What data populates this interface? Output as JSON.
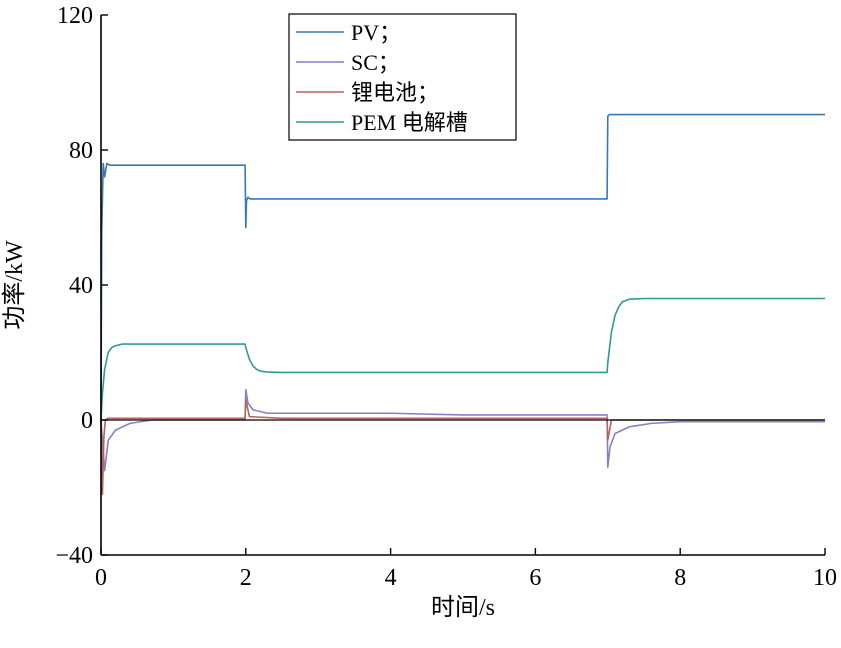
{
  "chart_data": {
    "type": "line",
    "xlabel": "时间/s",
    "ylabel": "功率/kW",
    "xlim": [
      0,
      10
    ],
    "ylim": [
      -40,
      120
    ],
    "x_ticks": [
      0,
      2,
      4,
      6,
      8,
      10
    ],
    "y_ticks": [
      -40,
      0,
      40,
      80,
      120
    ],
    "x_tick_labels": [
      "0",
      "2",
      "4",
      "6",
      "8",
      "10"
    ],
    "y_tick_labels": [
      "−40",
      "0",
      "40",
      "80",
      "120"
    ],
    "grid": false,
    "legend_position": "top-center",
    "series": [
      {
        "name": "PV；",
        "color": "#3a78b4",
        "x": [
          0,
          0.01,
          0.03,
          0.05,
          0.08,
          0.12,
          1.99,
          2.0,
          2.01,
          2.03,
          2.06,
          6.99,
          7.0,
          7.02,
          7.05,
          10.0
        ],
        "y": [
          0,
          55,
          76,
          72,
          76,
          75.5,
          75.5,
          57,
          65,
          66,
          65.5,
          65.5,
          90,
          90.5,
          90.5,
          90.5
        ]
      },
      {
        "name": "SC；",
        "color": "#8383c4",
        "x": [
          0,
          0.05,
          0.1,
          0.2,
          0.4,
          0.7,
          1.0,
          1.5,
          1.99,
          2.0,
          2.03,
          2.1,
          2.3,
          2.6,
          3.0,
          4.0,
          5.0,
          6.0,
          6.99,
          7.0,
          7.03,
          7.1,
          7.3,
          7.6,
          8.0,
          9.0,
          10.0
        ],
        "y": [
          0,
          -15,
          -6,
          -3,
          -1,
          0,
          0,
          0,
          0,
          9,
          5,
          3,
          2,
          2,
          2,
          2,
          1.5,
          1.5,
          1.5,
          -14,
          -8,
          -4,
          -2,
          -1,
          -0.5,
          -0.5,
          -0.5
        ]
      },
      {
        "name": "锂电池；",
        "color": "#b4655a",
        "x": [
          0,
          0.02,
          0.04,
          0.06,
          0.1,
          0.5,
          1.0,
          1.5,
          1.99,
          2.0,
          2.05,
          2.5,
          3.0,
          4.0,
          5.0,
          6.0,
          6.99,
          7.0,
          7.05,
          7.5,
          8.0,
          9.0,
          10.0
        ],
        "y": [
          0,
          -22,
          -5,
          0,
          0.5,
          0.5,
          0.5,
          0.5,
          0.5,
          6,
          1,
          0.5,
          0.5,
          0.5,
          0.5,
          0.5,
          0.5,
          -6,
          0,
          0,
          0,
          0,
          0
        ]
      },
      {
        "name": "PEM 电解槽",
        "color": "#2f9a96",
        "x": [
          0,
          0.02,
          0.05,
          0.1,
          0.15,
          0.2,
          0.3,
          0.5,
          1.0,
          1.99,
          2.0,
          2.05,
          2.1,
          2.15,
          2.2,
          2.3,
          2.5,
          3.0,
          6.99,
          7.0,
          7.05,
          7.1,
          7.15,
          7.2,
          7.3,
          7.5,
          8.0,
          10.0
        ],
        "y": [
          0,
          8,
          15,
          20,
          21.5,
          22,
          22.5,
          22.5,
          22.5,
          22.5,
          21.5,
          18,
          16,
          15,
          14.5,
          14.2,
          14.1,
          14.1,
          14.1,
          17,
          26,
          31,
          33.5,
          35,
          35.8,
          36,
          36,
          36
        ]
      }
    ]
  }
}
